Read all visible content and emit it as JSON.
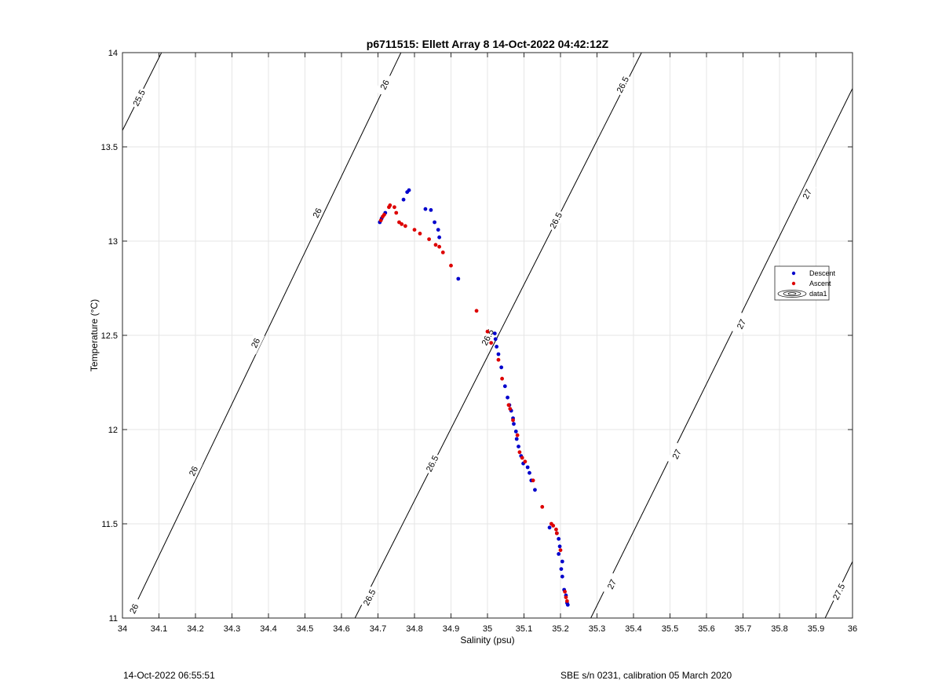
{
  "chart_data": {
    "type": "scatter",
    "title": "p6711515: Ellett Array 8 14-Oct-2022 04:42:12Z",
    "xlabel": "Salinity (psu)",
    "ylabel": "Temperature (°C)",
    "xlim": [
      34,
      36
    ],
    "ylim": [
      11,
      14
    ],
    "xticks": [
      "34",
      "34.1",
      "34.2",
      "34.3",
      "34.4",
      "34.5",
      "34.6",
      "34.7",
      "34.8",
      "34.9",
      "35",
      "35.1",
      "35.2",
      "35.3",
      "35.4",
      "35.5",
      "35.6",
      "35.7",
      "35.8",
      "35.9",
      "36"
    ],
    "yticks": [
      "11",
      "11.5",
      "12",
      "12.5",
      "13",
      "13.5",
      "14"
    ],
    "grid": true,
    "legend_position": "right",
    "legend": [
      "Descent",
      "Ascent",
      "data1"
    ],
    "series": [
      {
        "name": "Descent",
        "color": "#0000cc",
        "points": [
          [
            34.705,
            13.1
          ],
          [
            34.71,
            13.12
          ],
          [
            34.72,
            13.15
          ],
          [
            34.77,
            13.22
          ],
          [
            34.78,
            13.26
          ],
          [
            34.785,
            13.27
          ],
          [
            34.83,
            13.17
          ],
          [
            34.845,
            13.165
          ],
          [
            34.855,
            13.1
          ],
          [
            34.865,
            13.06
          ],
          [
            34.868,
            13.02
          ],
          [
            34.92,
            12.8
          ],
          [
            35.02,
            12.51
          ],
          [
            35.022,
            12.48
          ],
          [
            35.025,
            12.44
          ],
          [
            35.03,
            12.4
          ],
          [
            35.038,
            12.33
          ],
          [
            35.048,
            12.23
          ],
          [
            35.055,
            12.17
          ],
          [
            35.06,
            12.13
          ],
          [
            35.065,
            12.1
          ],
          [
            35.07,
            12.06
          ],
          [
            35.072,
            12.03
          ],
          [
            35.078,
            11.99
          ],
          [
            35.08,
            11.95
          ],
          [
            35.085,
            11.91
          ],
          [
            35.092,
            11.86
          ],
          [
            35.098,
            11.82
          ],
          [
            35.11,
            11.8
          ],
          [
            35.115,
            11.77
          ],
          [
            35.12,
            11.73
          ],
          [
            35.13,
            11.68
          ],
          [
            35.17,
            11.48
          ],
          [
            35.19,
            11.45
          ],
          [
            35.195,
            11.42
          ],
          [
            35.198,
            11.38
          ],
          [
            35.195,
            11.34
          ],
          [
            35.205,
            11.3
          ],
          [
            35.202,
            11.26
          ],
          [
            35.205,
            11.22
          ],
          [
            35.21,
            11.15
          ],
          [
            35.215,
            11.12
          ],
          [
            35.218,
            11.08
          ],
          [
            35.22,
            11.07
          ]
        ]
      },
      {
        "name": "Ascent",
        "color": "#dd0000",
        "points": [
          [
            34.708,
            13.11
          ],
          [
            34.713,
            13.13
          ],
          [
            34.717,
            13.14
          ],
          [
            34.73,
            13.18
          ],
          [
            34.733,
            13.19
          ],
          [
            34.745,
            13.18
          ],
          [
            34.75,
            13.15
          ],
          [
            34.758,
            13.1
          ],
          [
            34.765,
            13.09
          ],
          [
            34.775,
            13.08
          ],
          [
            34.8,
            13.06
          ],
          [
            34.815,
            13.04
          ],
          [
            34.84,
            13.01
          ],
          [
            34.858,
            12.98
          ],
          [
            34.868,
            12.97
          ],
          [
            34.878,
            12.94
          ],
          [
            34.9,
            12.87
          ],
          [
            34.97,
            12.63
          ],
          [
            35.0,
            12.52
          ],
          [
            35.01,
            12.46
          ],
          [
            35.03,
            12.37
          ],
          [
            35.04,
            12.27
          ],
          [
            35.058,
            12.13
          ],
          [
            35.062,
            12.11
          ],
          [
            35.07,
            12.05
          ],
          [
            35.082,
            11.97
          ],
          [
            35.088,
            11.88
          ],
          [
            35.095,
            11.85
          ],
          [
            35.103,
            11.83
          ],
          [
            35.125,
            11.73
          ],
          [
            35.15,
            11.59
          ],
          [
            35.175,
            11.5
          ],
          [
            35.18,
            11.49
          ],
          [
            35.188,
            11.47
          ],
          [
            35.19,
            11.45
          ],
          [
            35.2,
            11.36
          ],
          [
            35.212,
            11.14
          ],
          [
            35.215,
            11.11
          ],
          [
            35.218,
            11.09
          ]
        ]
      }
    ],
    "isopycnals": [
      {
        "sigma": 25.5,
        "label": "25.5",
        "from": [
          34.0,
          13.587
        ],
        "to": [
          34.107,
          14.0
        ],
        "labels_at": [
          [
            34.045,
            13.76
          ]
        ]
      },
      {
        "sigma": 26,
        "label": "26",
        "from": [
          34.0,
          10.928
        ],
        "to": [
          34.763,
          14.0
        ],
        "labels_at": [
          [
            34.031,
            11.05
          ],
          [
            34.194,
            11.78
          ],
          [
            34.364,
            12.46
          ],
          [
            34.533,
            13.15
          ],
          [
            34.718,
            13.83
          ]
        ]
      },
      {
        "sigma": 26.5,
        "label": "26.5",
        "from": [
          34.637,
          11.0
        ],
        "to": [
          35.422,
          14.0
        ],
        "labels_at": [
          [
            34.676,
            11.11
          ],
          [
            34.848,
            11.82
          ],
          [
            35.0,
            12.49
          ],
          [
            35.187,
            13.11
          ],
          [
            35.37,
            13.83
          ]
        ]
      },
      {
        "sigma": 27,
        "label": "27",
        "from": [
          35.283,
          11.0
        ],
        "to": [
          36.0,
          13.81
        ],
        "labels_at": [
          [
            35.34,
            11.18
          ],
          [
            35.518,
            11.87
          ],
          [
            35.695,
            12.56
          ],
          [
            35.875,
            13.25
          ]
        ]
      },
      {
        "sigma": 27.5,
        "label": "27.5",
        "from": [
          35.925,
          11.0
        ],
        "to": [
          36.0,
          11.3
        ],
        "labels_at": [
          [
            35.962,
            11.14
          ]
        ]
      }
    ]
  },
  "footer": {
    "left": "14-Oct-2022 06:55:51",
    "right": "SBE s/n 0231, calibration 05 March 2020"
  }
}
